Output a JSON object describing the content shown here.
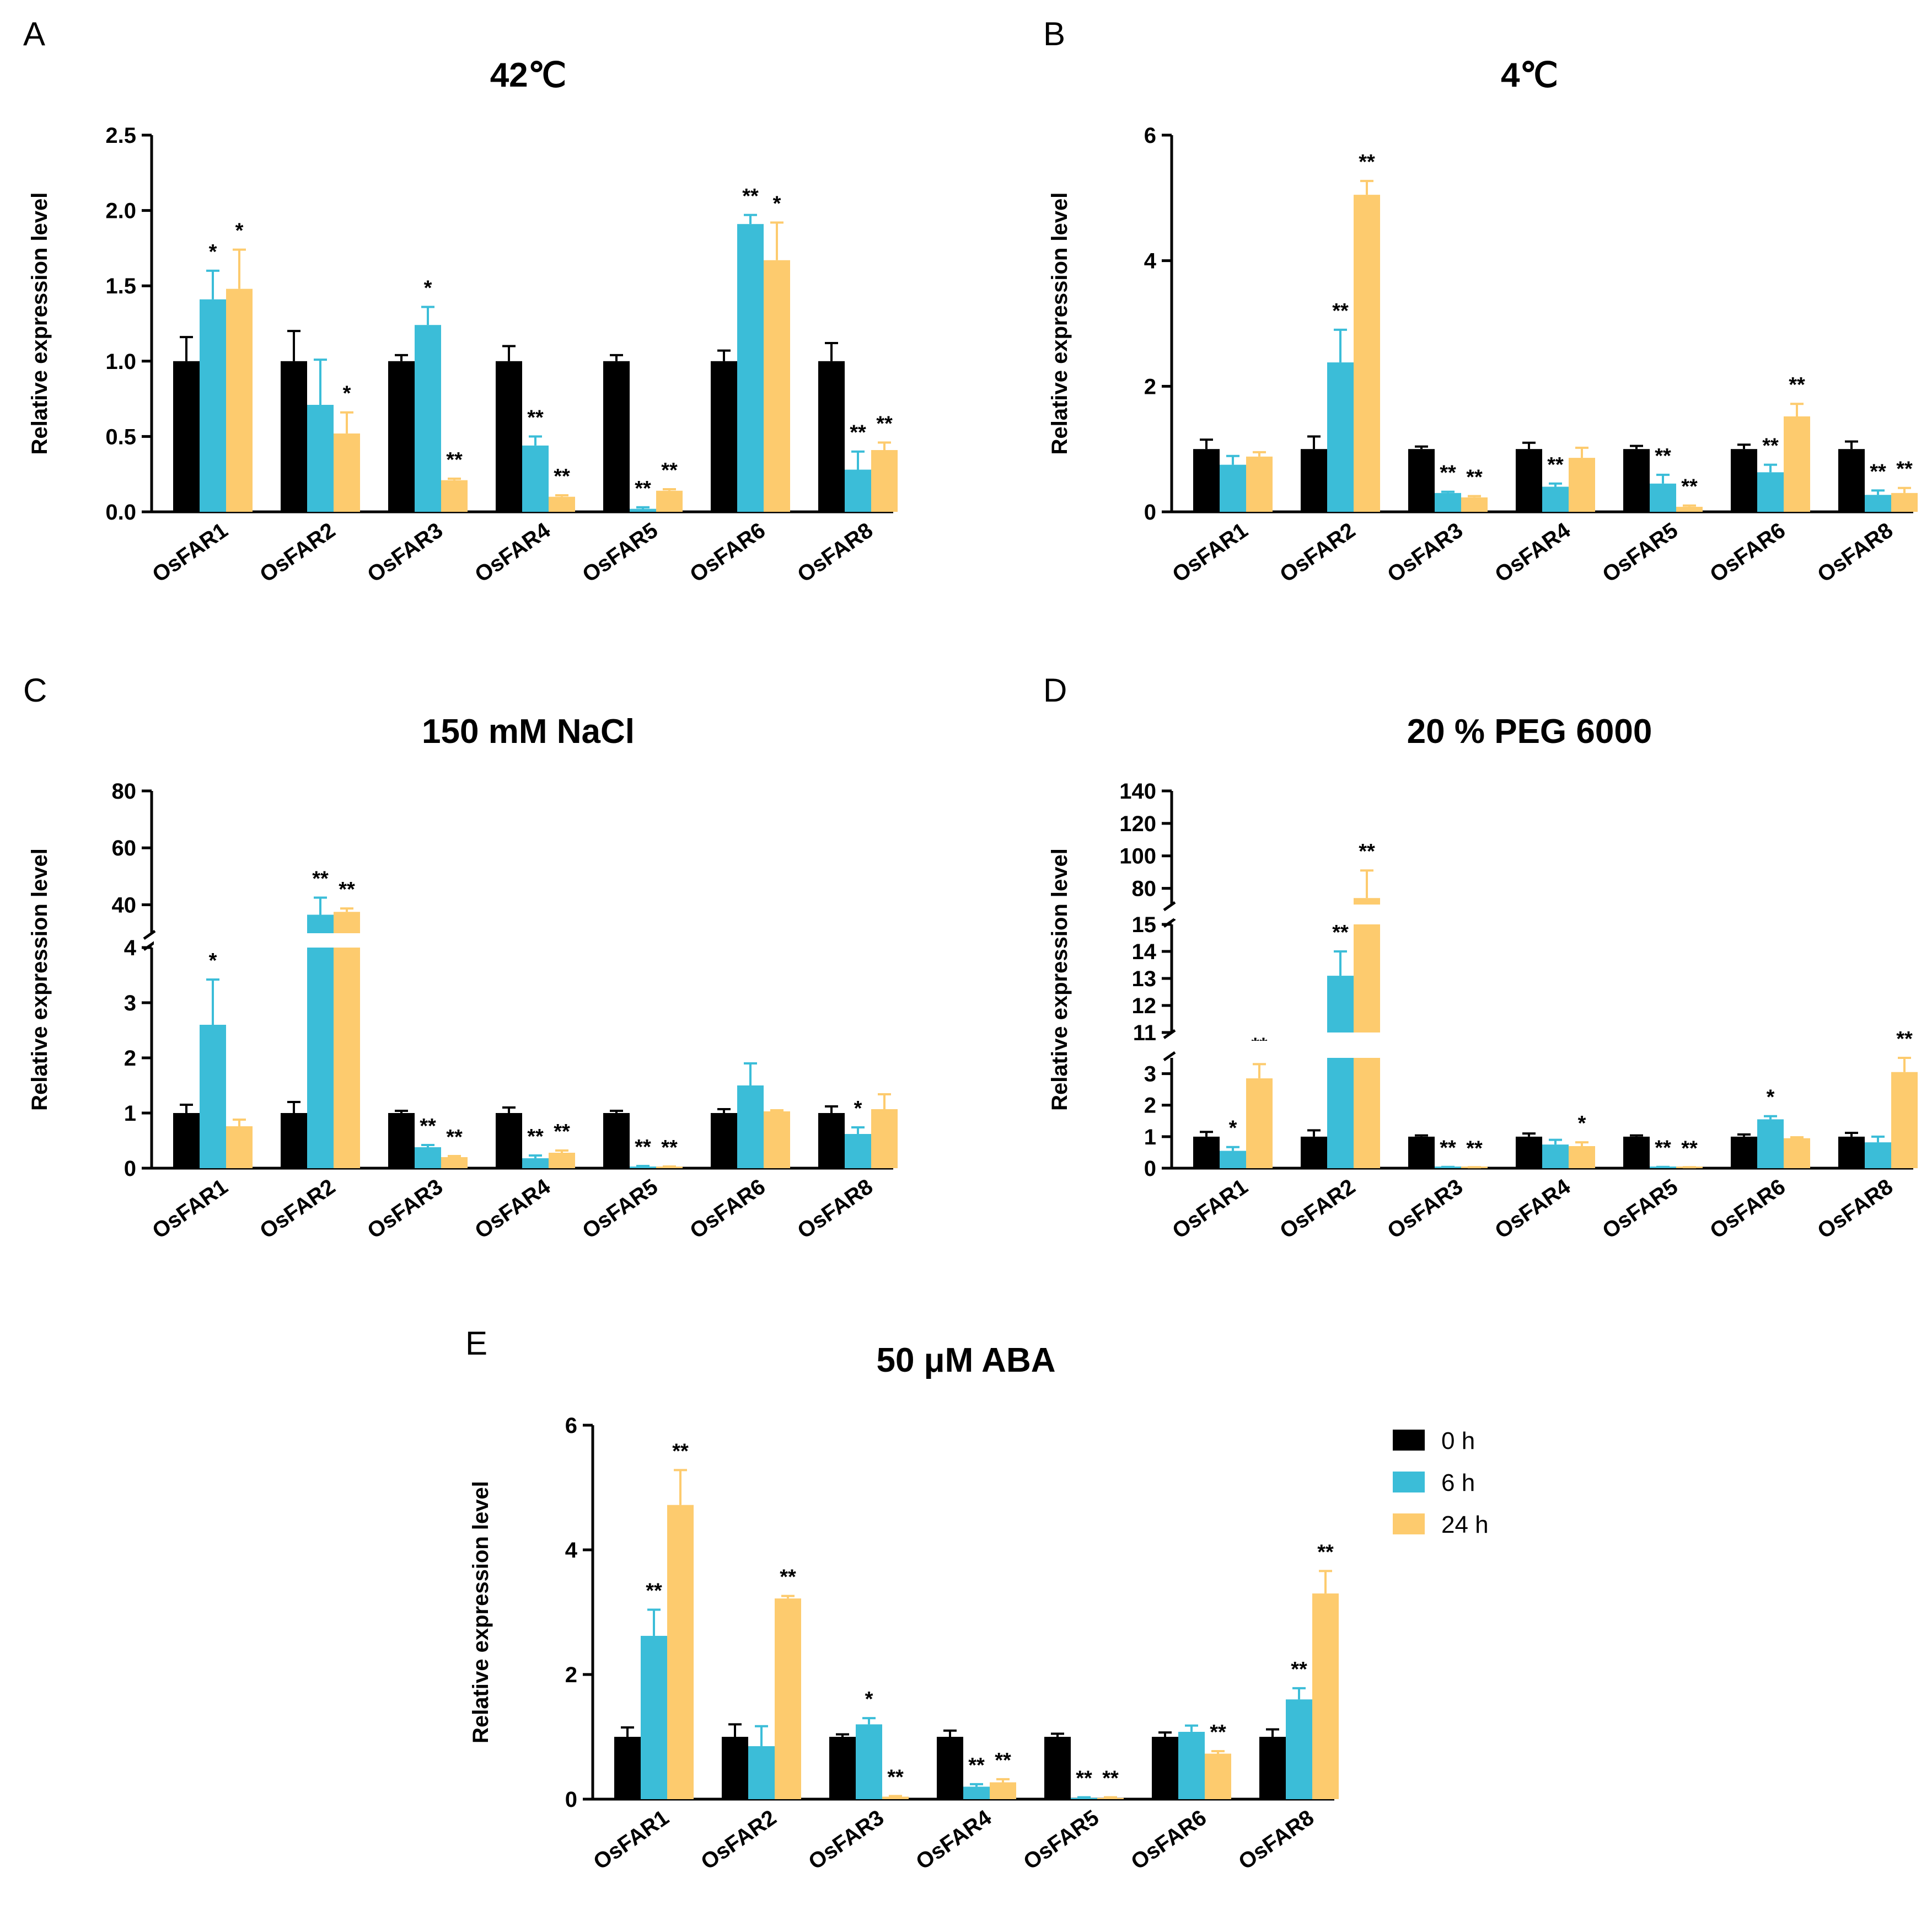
{
  "legend": {
    "entries": [
      {
        "label": "0 h",
        "color": "#000000"
      },
      {
        "label": "6 h",
        "color": "#3bbdd8"
      },
      {
        "label": "24 h",
        "color": "#fdcb6e"
      }
    ]
  },
  "chart_data": [
    {
      "panel": "A",
      "type": "bar",
      "title": "42℃",
      "ylabel": "Relative expression level",
      "ylim": [
        0,
        2.5
      ],
      "yticks": [
        "0.0",
        "0.5",
        "1.0",
        "1.5",
        "2.0",
        "2.5"
      ],
      "categories": [
        "OsFAR1",
        "OsFAR2",
        "OsFAR3",
        "OsFAR4",
        "OsFAR5",
        "OsFAR6",
        "OsFAR8"
      ],
      "series": [
        {
          "name": "0 h",
          "values": [
            1.0,
            1.0,
            1.0,
            1.0,
            1.0,
            1.0,
            1.0
          ],
          "errors": [
            0.16,
            0.2,
            0.04,
            0.1,
            0.04,
            0.07,
            0.12
          ],
          "sig": [
            "",
            "",
            "",
            "",
            "",
            "",
            ""
          ]
        },
        {
          "name": "6 h",
          "values": [
            1.41,
            0.71,
            1.24,
            0.44,
            0.02,
            1.91,
            0.28
          ],
          "errors": [
            0.19,
            0.3,
            0.12,
            0.06,
            0.01,
            0.06,
            0.12
          ],
          "sig": [
            "*",
            "",
            "*",
            "**",
            "**",
            "**",
            "**"
          ]
        },
        {
          "name": "24 h",
          "values": [
            1.48,
            0.52,
            0.21,
            0.1,
            0.14,
            1.67,
            0.41
          ],
          "errors": [
            0.26,
            0.14,
            0.01,
            0.01,
            0.01,
            0.25,
            0.05
          ],
          "sig": [
            "*",
            "*",
            "**",
            "**",
            "**",
            "*",
            "**"
          ]
        }
      ]
    },
    {
      "panel": "B",
      "type": "bar",
      "title": "4℃",
      "ylabel": "Relative expression level",
      "ylim": [
        0,
        6
      ],
      "yticks": [
        "0",
        "2",
        "4",
        "6"
      ],
      "categories": [
        "OsFAR1",
        "OsFAR2",
        "OsFAR3",
        "OsFAR4",
        "OsFAR5",
        "OsFAR6",
        "OsFAR8"
      ],
      "series": [
        {
          "name": "0 h",
          "values": [
            1.0,
            1.0,
            1.0,
            1.0,
            1.0,
            1.0,
            1.0
          ],
          "errors": [
            0.15,
            0.2,
            0.04,
            0.1,
            0.05,
            0.07,
            0.12
          ],
          "sig": [
            "",
            "",
            "",
            "",
            "",
            "",
            ""
          ]
        },
        {
          "name": "6 h",
          "values": [
            0.75,
            2.38,
            0.3,
            0.4,
            0.45,
            0.63,
            0.27
          ],
          "errors": [
            0.14,
            0.52,
            0.02,
            0.05,
            0.14,
            0.12,
            0.07
          ],
          "sig": [
            "",
            "**",
            "**",
            "**",
            "**",
            "**",
            "**"
          ]
        },
        {
          "name": "24 h",
          "values": [
            0.88,
            5.05,
            0.23,
            0.86,
            0.08,
            1.52,
            0.3
          ],
          "errors": [
            0.07,
            0.22,
            0.02,
            0.16,
            0.02,
            0.2,
            0.08
          ],
          "sig": [
            "",
            "**",
            "**",
            "",
            "**",
            "**",
            "**"
          ]
        }
      ]
    },
    {
      "panel": "C",
      "type": "bar",
      "title": "150 mM NaCl",
      "ylabel": "Relative expression level",
      "ylim": [
        0,
        80
      ],
      "breaks": [
        [
          4,
          30
        ]
      ],
      "yticks": [
        "0",
        "1",
        "2",
        "3",
        "4",
        "40",
        "60",
        "80"
      ],
      "categories": [
        "OsFAR1",
        "OsFAR2",
        "OsFAR3",
        "OsFAR4",
        "OsFAR5",
        "OsFAR6",
        "OsFAR8"
      ],
      "series": [
        {
          "name": "0 h",
          "values": [
            1.0,
            1.0,
            1.0,
            1.0,
            1.0,
            1.0,
            1.0
          ],
          "errors": [
            0.15,
            0.2,
            0.04,
            0.1,
            0.04,
            0.07,
            0.12
          ],
          "sig": [
            "",
            "",
            "",
            "",
            "",
            "",
            ""
          ]
        },
        {
          "name": "6 h",
          "values": [
            2.6,
            36.5,
            0.38,
            0.18,
            0.03,
            1.5,
            0.62
          ],
          "errors": [
            0.82,
            6.0,
            0.04,
            0.05,
            0.01,
            0.4,
            0.12
          ],
          "sig": [
            "*",
            "**",
            "**",
            "**",
            "**",
            "",
            "*"
          ]
        },
        {
          "name": "24 h",
          "values": [
            0.76,
            37.5,
            0.2,
            0.28,
            0.02,
            1.03,
            1.07
          ],
          "errors": [
            0.12,
            1.2,
            0.02,
            0.04,
            0.01,
            0.02,
            0.27
          ],
          "sig": [
            "",
            "**",
            "**",
            "**",
            "**",
            "",
            ""
          ]
        }
      ]
    },
    {
      "panel": "D",
      "type": "bar",
      "title": "20 % PEG 6000",
      "ylabel": "Relative expression level",
      "ylim": [
        0,
        140
      ],
      "breaks": [
        [
          3.5,
          11
        ],
        [
          15,
          70
        ]
      ],
      "yticks": [
        "0",
        "1",
        "2",
        "3",
        "11",
        "12",
        "13",
        "14",
        "15",
        "80",
        "100",
        "120",
        "140"
      ],
      "categories": [
        "OsFAR1",
        "OsFAR2",
        "OsFAR3",
        "OsFAR4",
        "OsFAR5",
        "OsFAR6",
        "OsFAR8"
      ],
      "series": [
        {
          "name": "0 h",
          "values": [
            1.0,
            1.0,
            1.0,
            1.0,
            1.0,
            1.0,
            1.0
          ],
          "errors": [
            0.15,
            0.2,
            0.04,
            0.1,
            0.04,
            0.07,
            0.12
          ],
          "sig": [
            "",
            "",
            "",
            "",
            "",
            "",
            ""
          ]
        },
        {
          "name": "6 h",
          "values": [
            0.55,
            13.1,
            0.03,
            0.75,
            0.03,
            1.55,
            0.82
          ],
          "errors": [
            0.12,
            0.9,
            0.01,
            0.15,
            0.01,
            0.1,
            0.18
          ],
          "sig": [
            "*",
            "**",
            "**",
            "",
            "**",
            "*",
            ""
          ]
        },
        {
          "name": "24 h",
          "values": [
            2.85,
            74,
            0.02,
            0.7,
            0.02,
            0.95,
            3.05
          ],
          "errors": [
            0.45,
            17,
            0.01,
            0.12,
            0.01,
            0.03,
            0.55
          ],
          "sig": [
            "**",
            "**",
            "**",
            "*",
            "**",
            "",
            "**"
          ]
        }
      ]
    },
    {
      "panel": "E",
      "type": "bar",
      "title": "50 μM ABA",
      "ylabel": "Relative expression level",
      "ylim": [
        0,
        6
      ],
      "yticks": [
        "0",
        "2",
        "4",
        "6"
      ],
      "categories": [
        "OsFAR1",
        "OsFAR2",
        "OsFAR3",
        "OsFAR4",
        "OsFAR5",
        "OsFAR6",
        "OsFAR8"
      ],
      "series": [
        {
          "name": "0 h",
          "values": [
            1.0,
            1.0,
            1.0,
            1.0,
            1.0,
            1.0,
            1.0
          ],
          "errors": [
            0.15,
            0.2,
            0.04,
            0.1,
            0.05,
            0.07,
            0.12
          ],
          "sig": [
            "",
            "",
            "",
            "",
            "",
            "",
            ""
          ]
        },
        {
          "name": "6 h",
          "values": [
            2.62,
            0.85,
            1.2,
            0.2,
            0.02,
            1.08,
            1.6
          ],
          "errors": [
            0.42,
            0.32,
            0.1,
            0.04,
            0.01,
            0.1,
            0.18
          ],
          "sig": [
            "**",
            "",
            "*",
            "**",
            "**",
            "",
            "**"
          ]
        },
        {
          "name": "24 h",
          "values": [
            4.72,
            3.22,
            0.04,
            0.27,
            0.02,
            0.73,
            3.3
          ],
          "errors": [
            0.56,
            0.04,
            0.01,
            0.05,
            0.01,
            0.04,
            0.36
          ],
          "sig": [
            "**",
            "**",
            "**",
            "**",
            "**",
            "**",
            "**"
          ]
        }
      ]
    }
  ]
}
